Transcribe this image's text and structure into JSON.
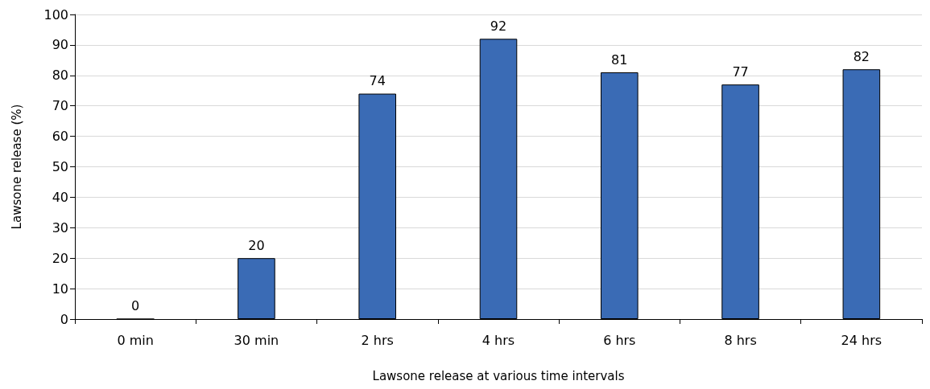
{
  "chart_data": {
    "type": "bar",
    "xlabel": "Lawsone release at various time intervals",
    "ylabel": "Lawsone release (%)",
    "categories": [
      "0 min",
      "30 min",
      "2 hrs",
      "4 hrs",
      "6 hrs",
      "8 hrs",
      "24 hrs"
    ],
    "values": [
      0,
      20,
      74,
      92,
      81,
      77,
      82
    ],
    "color": "#3a6bb5",
    "ylim": [
      0,
      100
    ],
    "yticks": [
      0,
      10,
      20,
      30,
      40,
      50,
      60,
      70,
      80,
      90,
      100
    ],
    "grid": "y",
    "data_labels": true
  }
}
